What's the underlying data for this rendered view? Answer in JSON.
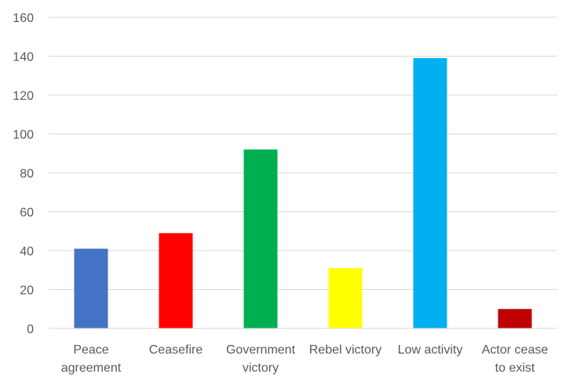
{
  "chart_data": {
    "type": "bar",
    "title": "",
    "xlabel": "",
    "ylabel": "",
    "categories": [
      [
        "Peace",
        "agreement"
      ],
      [
        "Ceasefire"
      ],
      [
        "Government",
        "victory"
      ],
      [
        "Rebel victory"
      ],
      [
        "Low activity"
      ],
      [
        "Actor cease",
        "to exist"
      ]
    ],
    "values": [
      41,
      49,
      92,
      31,
      139,
      10
    ],
    "colors": [
      "#4472C4",
      "#FF0000",
      "#00B050",
      "#FFFF00",
      "#00B0F0",
      "#C00000"
    ],
    "ylim": [
      0,
      160
    ],
    "yticks": [
      0,
      20,
      40,
      60,
      80,
      100,
      120,
      140,
      160
    ],
    "grid": true,
    "gridline_color": "#d9d9d9",
    "legend": "none"
  }
}
